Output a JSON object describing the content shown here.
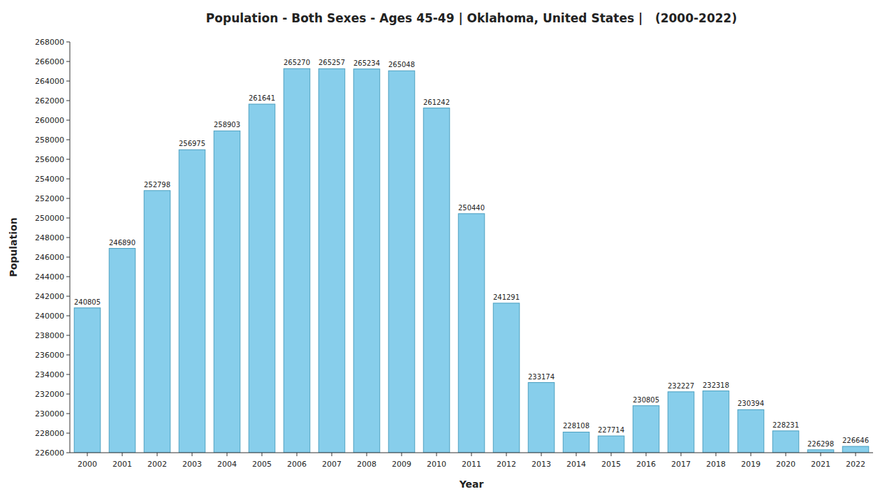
{
  "chart_data": {
    "type": "bar",
    "title": "Population - Both Sexes - Ages 45-49 | Oklahoma, United States |   (2000-2022)",
    "xlabel": "Year",
    "ylabel": "Population",
    "categories": [
      "2000",
      "2001",
      "2002",
      "2003",
      "2004",
      "2005",
      "2006",
      "2007",
      "2008",
      "2009",
      "2010",
      "2011",
      "2012",
      "2013",
      "2014",
      "2015",
      "2016",
      "2017",
      "2018",
      "2019",
      "2020",
      "2021",
      "2022"
    ],
    "values": [
      240805,
      246890,
      252798,
      256975,
      258903,
      261641,
      265270,
      265257,
      265234,
      265048,
      261242,
      250440,
      241291,
      233174,
      228108,
      227714,
      230805,
      232227,
      232318,
      230394,
      228231,
      226298,
      226646
    ],
    "color": "#87CEEB",
    "ylim": [
      226000,
      268000
    ],
    "yticks": [
      226000,
      228000,
      230000,
      232000,
      234000,
      236000,
      238000,
      240000,
      242000,
      244000,
      246000,
      248000,
      250000,
      252000,
      254000,
      256000,
      258000,
      260000,
      262000,
      264000,
      266000,
      268000
    ],
    "grid": false,
    "data_labels": true
  }
}
